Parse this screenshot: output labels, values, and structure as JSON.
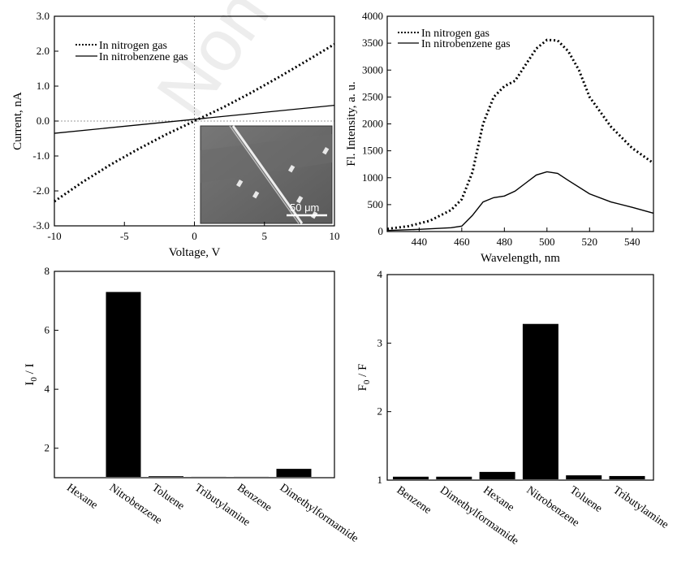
{
  "watermark": "Non-c",
  "chart_data": [
    {
      "type": "line",
      "panel": "iv",
      "xlabel": "Voltage, V",
      "ylabel": "Current, nA",
      "xlim": [
        -10,
        10
      ],
      "ylim": [
        -3.0,
        3.0
      ],
      "xticks": [
        -10,
        -5,
        0,
        5,
        10
      ],
      "yticks": [
        -3.0,
        -2.0,
        -1.0,
        0.0,
        1.0,
        2.0,
        3.0
      ],
      "ytick_labels": [
        "-3.0",
        "-2.0",
        "-1.0",
        "0.0",
        "1.0",
        "2.0",
        "3.0"
      ],
      "legend_position": "top-left",
      "inset_scalebar": "50 μm",
      "series": [
        {
          "name": "In nitrogen gas",
          "style": "dotted",
          "x": [
            -10,
            -8,
            -6,
            -4,
            -2,
            0,
            2,
            4,
            6,
            8,
            10
          ],
          "y": [
            -2.3,
            -1.75,
            -1.25,
            -0.8,
            -0.38,
            0.0,
            0.38,
            0.8,
            1.25,
            1.72,
            2.2
          ]
        },
        {
          "name": "In nitrobenzene gas",
          "style": "solid",
          "x": [
            -10,
            10
          ],
          "y": [
            -0.35,
            0.45
          ]
        }
      ]
    },
    {
      "type": "line",
      "panel": "spectrum",
      "xlabel": "Wavelength, nm",
      "ylabel": "Fl. Intensity, a. u.",
      "xlim": [
        425,
        550
      ],
      "ylim": [
        0,
        4000
      ],
      "xticks": [
        440,
        460,
        480,
        500,
        520,
        540
      ],
      "yticks": [
        0,
        500,
        1000,
        1500,
        2000,
        2500,
        3000,
        3500,
        4000
      ],
      "legend_position": "top-left",
      "series": [
        {
          "name": "In nitrogen gas",
          "style": "dotted",
          "x": [
            425,
            435,
            445,
            455,
            460,
            465,
            470,
            475,
            480,
            485,
            490,
            495,
            500,
            505,
            510,
            515,
            520,
            530,
            540,
            550
          ],
          "y": [
            50,
            100,
            200,
            400,
            600,
            1100,
            2000,
            2500,
            2700,
            2800,
            3100,
            3400,
            3560,
            3550,
            3350,
            3000,
            2500,
            1950,
            1550,
            1270
          ]
        },
        {
          "name": "In nitrobenzene gas",
          "style": "solid",
          "x": [
            425,
            440,
            455,
            460,
            465,
            470,
            475,
            480,
            485,
            490,
            495,
            500,
            505,
            510,
            520,
            530,
            540,
            550
          ],
          "y": [
            20,
            40,
            70,
            100,
            300,
            550,
            630,
            660,
            750,
            900,
            1050,
            1110,
            1080,
            950,
            700,
            550,
            450,
            340
          ]
        }
      ]
    },
    {
      "type": "bar",
      "panel": "bar-left",
      "ylabel": "I0 / I",
      "ylabel_main": "I",
      "ylabel_sub": "0",
      "ylabel_rest": " / I",
      "ylim": [
        1,
        8
      ],
      "yticks": [
        2,
        4,
        6,
        8
      ],
      "categories": [
        "Hexane",
        "Nitrobenzene",
        "Toluene",
        "Tributylamine",
        "Benzene",
        "Dimethylformamide"
      ],
      "values": [
        1.02,
        7.3,
        1.05,
        1.03,
        1.03,
        1.3
      ]
    },
    {
      "type": "bar",
      "panel": "bar-right",
      "ylabel": "F0 / F",
      "ylabel_main": "F",
      "ylabel_sub": "0",
      "ylabel_rest": " / F",
      "ylim": [
        1,
        4
      ],
      "yticks": [
        1,
        2,
        3,
        4
      ],
      "categories": [
        "Benzene",
        "Dimethylformamide",
        "Hexane",
        "Nitrobenzene",
        "Toluene",
        "Tributylamine"
      ],
      "values": [
        1.05,
        1.05,
        1.12,
        3.28,
        1.07,
        1.06
      ]
    }
  ]
}
